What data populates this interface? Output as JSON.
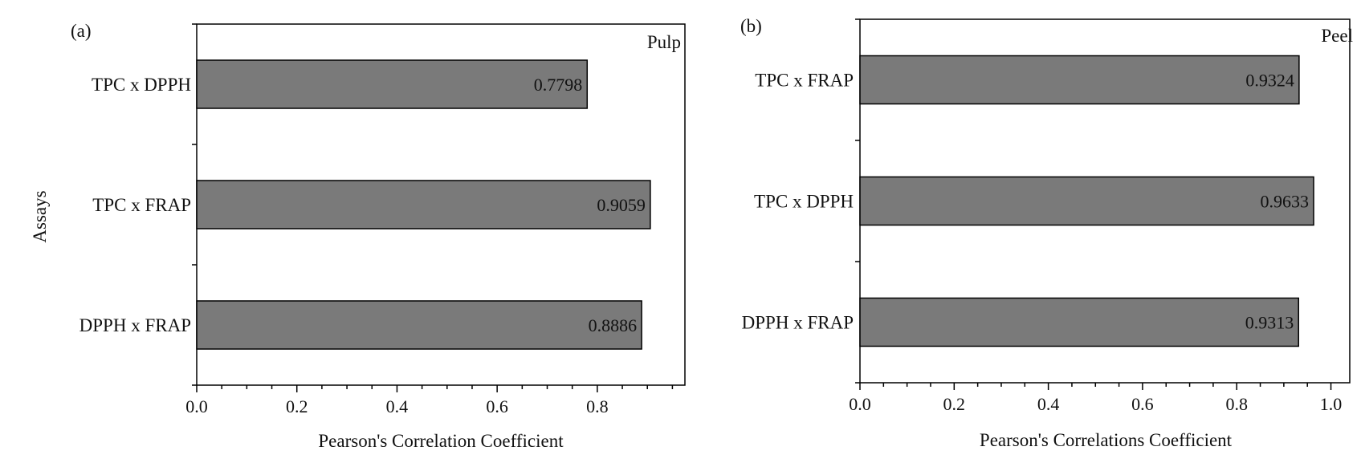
{
  "chart_data": [
    {
      "type": "bar",
      "orientation": "horizontal",
      "panel_label": "(a)",
      "subtitle": "Pulp",
      "categories": [
        "TPC x DPPH",
        "TPC x FRAP",
        "DPPH x FRAP"
      ],
      "values": [
        0.7798,
        0.9059,
        0.8886
      ],
      "value_labels": [
        "0.7798",
        "0.9059",
        "0.8886"
      ],
      "xlabel": "Pearson's Correlation Coefficient",
      "ylabel": "Assays",
      "xlim": [
        0,
        0.975
      ],
      "xticks": [
        0.0,
        0.2,
        0.4,
        0.6,
        0.8
      ],
      "xtick_labels": [
        "0.0",
        "0.2",
        "0.4",
        "0.6",
        "0.8"
      ],
      "bar_color": "#7a7a7a",
      "grid": false
    },
    {
      "type": "bar",
      "orientation": "horizontal",
      "panel_label": "(b)",
      "subtitle": "Peel",
      "categories": [
        "TPC x FRAP",
        "TPC x DPPH",
        "DPPH x FRAP"
      ],
      "values": [
        0.9324,
        0.9633,
        0.9313
      ],
      "value_labels": [
        "0.9324",
        "0.9633",
        "0.9313"
      ],
      "xlabel": "Pearson's Correlations Coefficient",
      "ylabel": "",
      "xlim": [
        0,
        1.04
      ],
      "xticks": [
        0.0,
        0.2,
        0.4,
        0.6,
        0.8,
        1.0
      ],
      "xtick_labels": [
        "0.0",
        "0.2",
        "0.4",
        "0.6",
        "0.8",
        "1.0"
      ],
      "bar_color": "#7a7a7a",
      "grid": false
    }
  ]
}
